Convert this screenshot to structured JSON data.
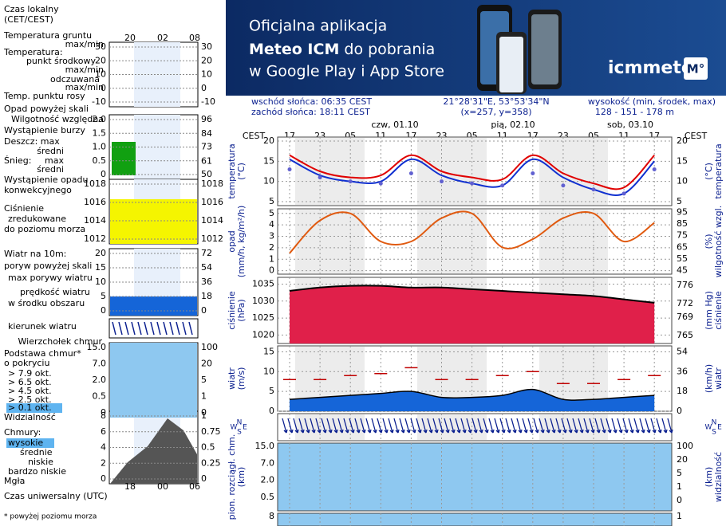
{
  "banner": {
    "line1": "Oficjalna aplikacja",
    "line2_bold": "Meteo ICM",
    "line2_rest": " do pobrania",
    "line3": "w Google Play i App Store",
    "logo": "icmmeteo",
    "badge": "M°"
  },
  "header": {
    "sunrise": "wschód słońca: 06:35 CEST",
    "sunset": "zachód słońca: 18:11 CEST",
    "coords": "21°28'31\"E, 53°53'34\"N",
    "grid": "(x=257,  y=358)",
    "altitude_label": "wysokość (min, środek, max)",
    "altitude": "128 - 151 - 178 m"
  },
  "legend": {
    "items": [
      "Czas lokalny",
      "(CET/CEST)",
      "Temperatura gruntu",
      "max/min",
      "Temperatura:",
      "punkt środkowy",
      "max/min",
      "odczuwana",
      "max/min",
      "Temp. punktu rosy",
      "Opad powyżej skali",
      "Wilgotność względna",
      "Wystąpienie burzy",
      "Deszcz: max",
      "średni",
      "Śnieg:",
      "max",
      "średni",
      "Wystąpienie opadu",
      "konwekcyjnego",
      "Ciśnienie",
      "zredukowane",
      "do poziomu morza",
      "Wiatr na 10m:",
      "poryw powyżej skali",
      "max porywy wiatru",
      "prędkość wiatru",
      "w środku obszaru",
      "kierunek wiatru",
      "Wierzchołek chmur",
      "Podstawa chmur*",
      "o pokryciu",
      "> 7.9 okt.",
      "> 6.5 okt.",
      "> 4.5 okt.",
      "> 2.5 okt.",
      "> 0.1 okt.",
      "Widzialność",
      "Chmury:",
      "wysokie",
      "średnie",
      "niskie",
      "bardzo niskie",
      "Mgła",
      "Czas uniwersalny (UTC)",
      "* powyżej poziomu morza"
    ],
    "local_times": [
      "20",
      "02",
      "08"
    ],
    "utc_times": [
      "18",
      "00",
      "06"
    ],
    "panels": {
      "temperature": {
        "ylim": [
          -10,
          30
        ],
        "yticks": [
          30,
          20,
          10,
          0,
          -10
        ],
        "y2ticks": [
          30,
          20,
          10,
          0,
          -10
        ]
      },
      "precip": {
        "ylim": [
          0,
          2
        ],
        "yticks": [
          {
            "value": 2,
            "label": "2.0"
          },
          {
            "value": 1.5,
            "label": "1.5"
          },
          {
            "value": 1,
            "label": "1.0"
          },
          {
            "value": 0.5,
            "label": "0.5"
          },
          0
        ],
        "y2lim": [
          50,
          96
        ],
        "y2ticks": [
          96,
          84,
          73,
          61,
          50
        ]
      },
      "pressure": {
        "ylim": [
          1012,
          1018
        ],
        "yticks": [
          1018,
          1016,
          1014,
          1012
        ],
        "y2ticks": [
          1018,
          1016,
          1014,
          1012
        ]
      },
      "wind": {
        "ylim": [
          0,
          20
        ],
        "yticks": [
          20,
          15,
          10,
          5,
          0
        ],
        "y2lim": [
          0,
          72
        ],
        "y2ticks": [
          72,
          54,
          36,
          18,
          0
        ]
      },
      "clouds": {
        "yticks": [
          "15.0",
          "7.0",
          "2.0",
          "0.5",
          "0"
        ],
        "y2ticks": [
          100,
          20,
          5,
          1,
          0
        ]
      },
      "cover": {
        "ylim": [
          0,
          8
        ],
        "yticks": [
          8,
          6,
          4,
          2,
          0
        ],
        "y2lim": [
          0,
          1
        ],
        "y2ticks": [
          1,
          0.75,
          0.5,
          0.25,
          0
        ]
      }
    }
  },
  "chart_data": {
    "type": "line",
    "timezone": "CEST",
    "categories": [
      "17",
      "23",
      "05",
      "11",
      "17",
      "23",
      "05",
      "11",
      "17",
      "23",
      "05",
      "11",
      "17"
    ],
    "days": [
      "czw, 01.10",
      "pią, 02.10",
      "sob, 03.10"
    ],
    "compass": [
      "W",
      "N",
      "S",
      "E"
    ],
    "panels": {
      "temperature": {
        "left_title": [
          "temperatura",
          "(°C)"
        ],
        "right_title": [
          "(°C)",
          "temperatura"
        ],
        "ylim": [
          4,
          21
        ],
        "yticks": [
          20,
          15,
          10,
          5
        ],
        "y2ticks": [
          20,
          15,
          10,
          5
        ],
        "series": [
          {
            "name": "odczuwana",
            "color": "#1030d0",
            "values": [
              15.5,
              11.5,
              10,
              10,
              15.5,
              11.5,
              9.5,
              9,
              15.5,
              11,
              8,
              7,
              15
            ]
          },
          {
            "name": "punkt środkowy",
            "color": "#e00000",
            "values": [
              16.5,
              12.5,
              11,
              11.5,
              16.5,
              12.5,
              11,
              10.5,
              16.5,
              12,
              9.5,
              8.5,
              16.5
            ]
          },
          {
            "name": "Temp. punktu rosy",
            "color": "#6060d0",
            "values": [
              13,
              11,
              10,
              9.5,
              12,
              10,
              9.5,
              9,
              12,
              9,
              8,
              7,
              13
            ]
          }
        ]
      },
      "precip": {
        "left_title": [
          "opad",
          "(mm/h, kg/m²/h)"
        ],
        "right_title": [
          "(%)",
          "wilgotność wzgl."
        ],
        "ylim": [
          -0.3,
          5.4
        ],
        "yticks": [
          5,
          4,
          3,
          2,
          1,
          0
        ],
        "y2lim": [
          42,
          98
        ],
        "y2ticks": [
          95,
          85,
          75,
          65,
          55,
          45
        ],
        "series": [
          {
            "name": "Wilgotność względna",
            "color": "#e05a10",
            "axis": "y2",
            "values": [
              60,
              88,
              94,
              70,
              70,
              90,
              94,
              65,
              72,
              90,
              94,
              70,
              86
            ]
          }
        ]
      },
      "pressure": {
        "left_title": [
          "ciśnienie",
          "(hPa)"
        ],
        "right_title": [
          "(mm Hg)",
          "ciśnienie"
        ],
        "ylim": [
          1017.5,
          1037
        ],
        "yticks": [
          1035,
          1030,
          1025,
          1020
        ],
        "y2lim": [
          763.2,
          777.8
        ],
        "y2ticks": [
          776,
          772,
          769,
          765
        ],
        "series": [
          {
            "name": "Ciśnienie",
            "color": "#e0204a",
            "values": [
              1033,
              1034,
              1034.5,
              1034.5,
              1034,
              1034,
              1033.5,
              1033,
              1032.5,
              1032,
              1031.5,
              1030.5,
              1029.5
            ]
          }
        ]
      },
      "wind": {
        "left_title": [
          "wiatr",
          "(m/s)"
        ],
        "right_title": [
          "(km/h)",
          "wiatr"
        ],
        "ylim": [
          0,
          16.5
        ],
        "yticks": [
          15,
          10,
          5,
          0
        ],
        "y2lim": [
          0,
          59.4
        ],
        "y2ticks": [
          54,
          36,
          18,
          0
        ],
        "series": [
          {
            "name": "prędkość wiatru",
            "color": "#1565d8",
            "values": [
              3,
              3.5,
              4,
              4.5,
              5,
              3.5,
              3.5,
              4,
              5.5,
              3,
              3,
              3.5,
              4
            ]
          },
          {
            "name": "max porywy wiatru",
            "color": "#c00000",
            "values": [
              8,
              8,
              9,
              9.5,
              11,
              8,
              8,
              9,
              10,
              7,
              7,
              8,
              9
            ]
          }
        ]
      },
      "clouds": {
        "left_title": [
          "pion. rozciągł. chm.",
          "(km)"
        ],
        "right_title": [
          "(km)",
          "widzialność"
        ],
        "yticks": [
          "15.0",
          "7.0",
          "2.0",
          "0.5"
        ],
        "y2ticks": [
          100,
          20,
          5,
          1,
          0
        ]
      },
      "cover": {
        "yticks": [
          8
        ],
        "y2ticks": [
          1
        ]
      }
    }
  }
}
